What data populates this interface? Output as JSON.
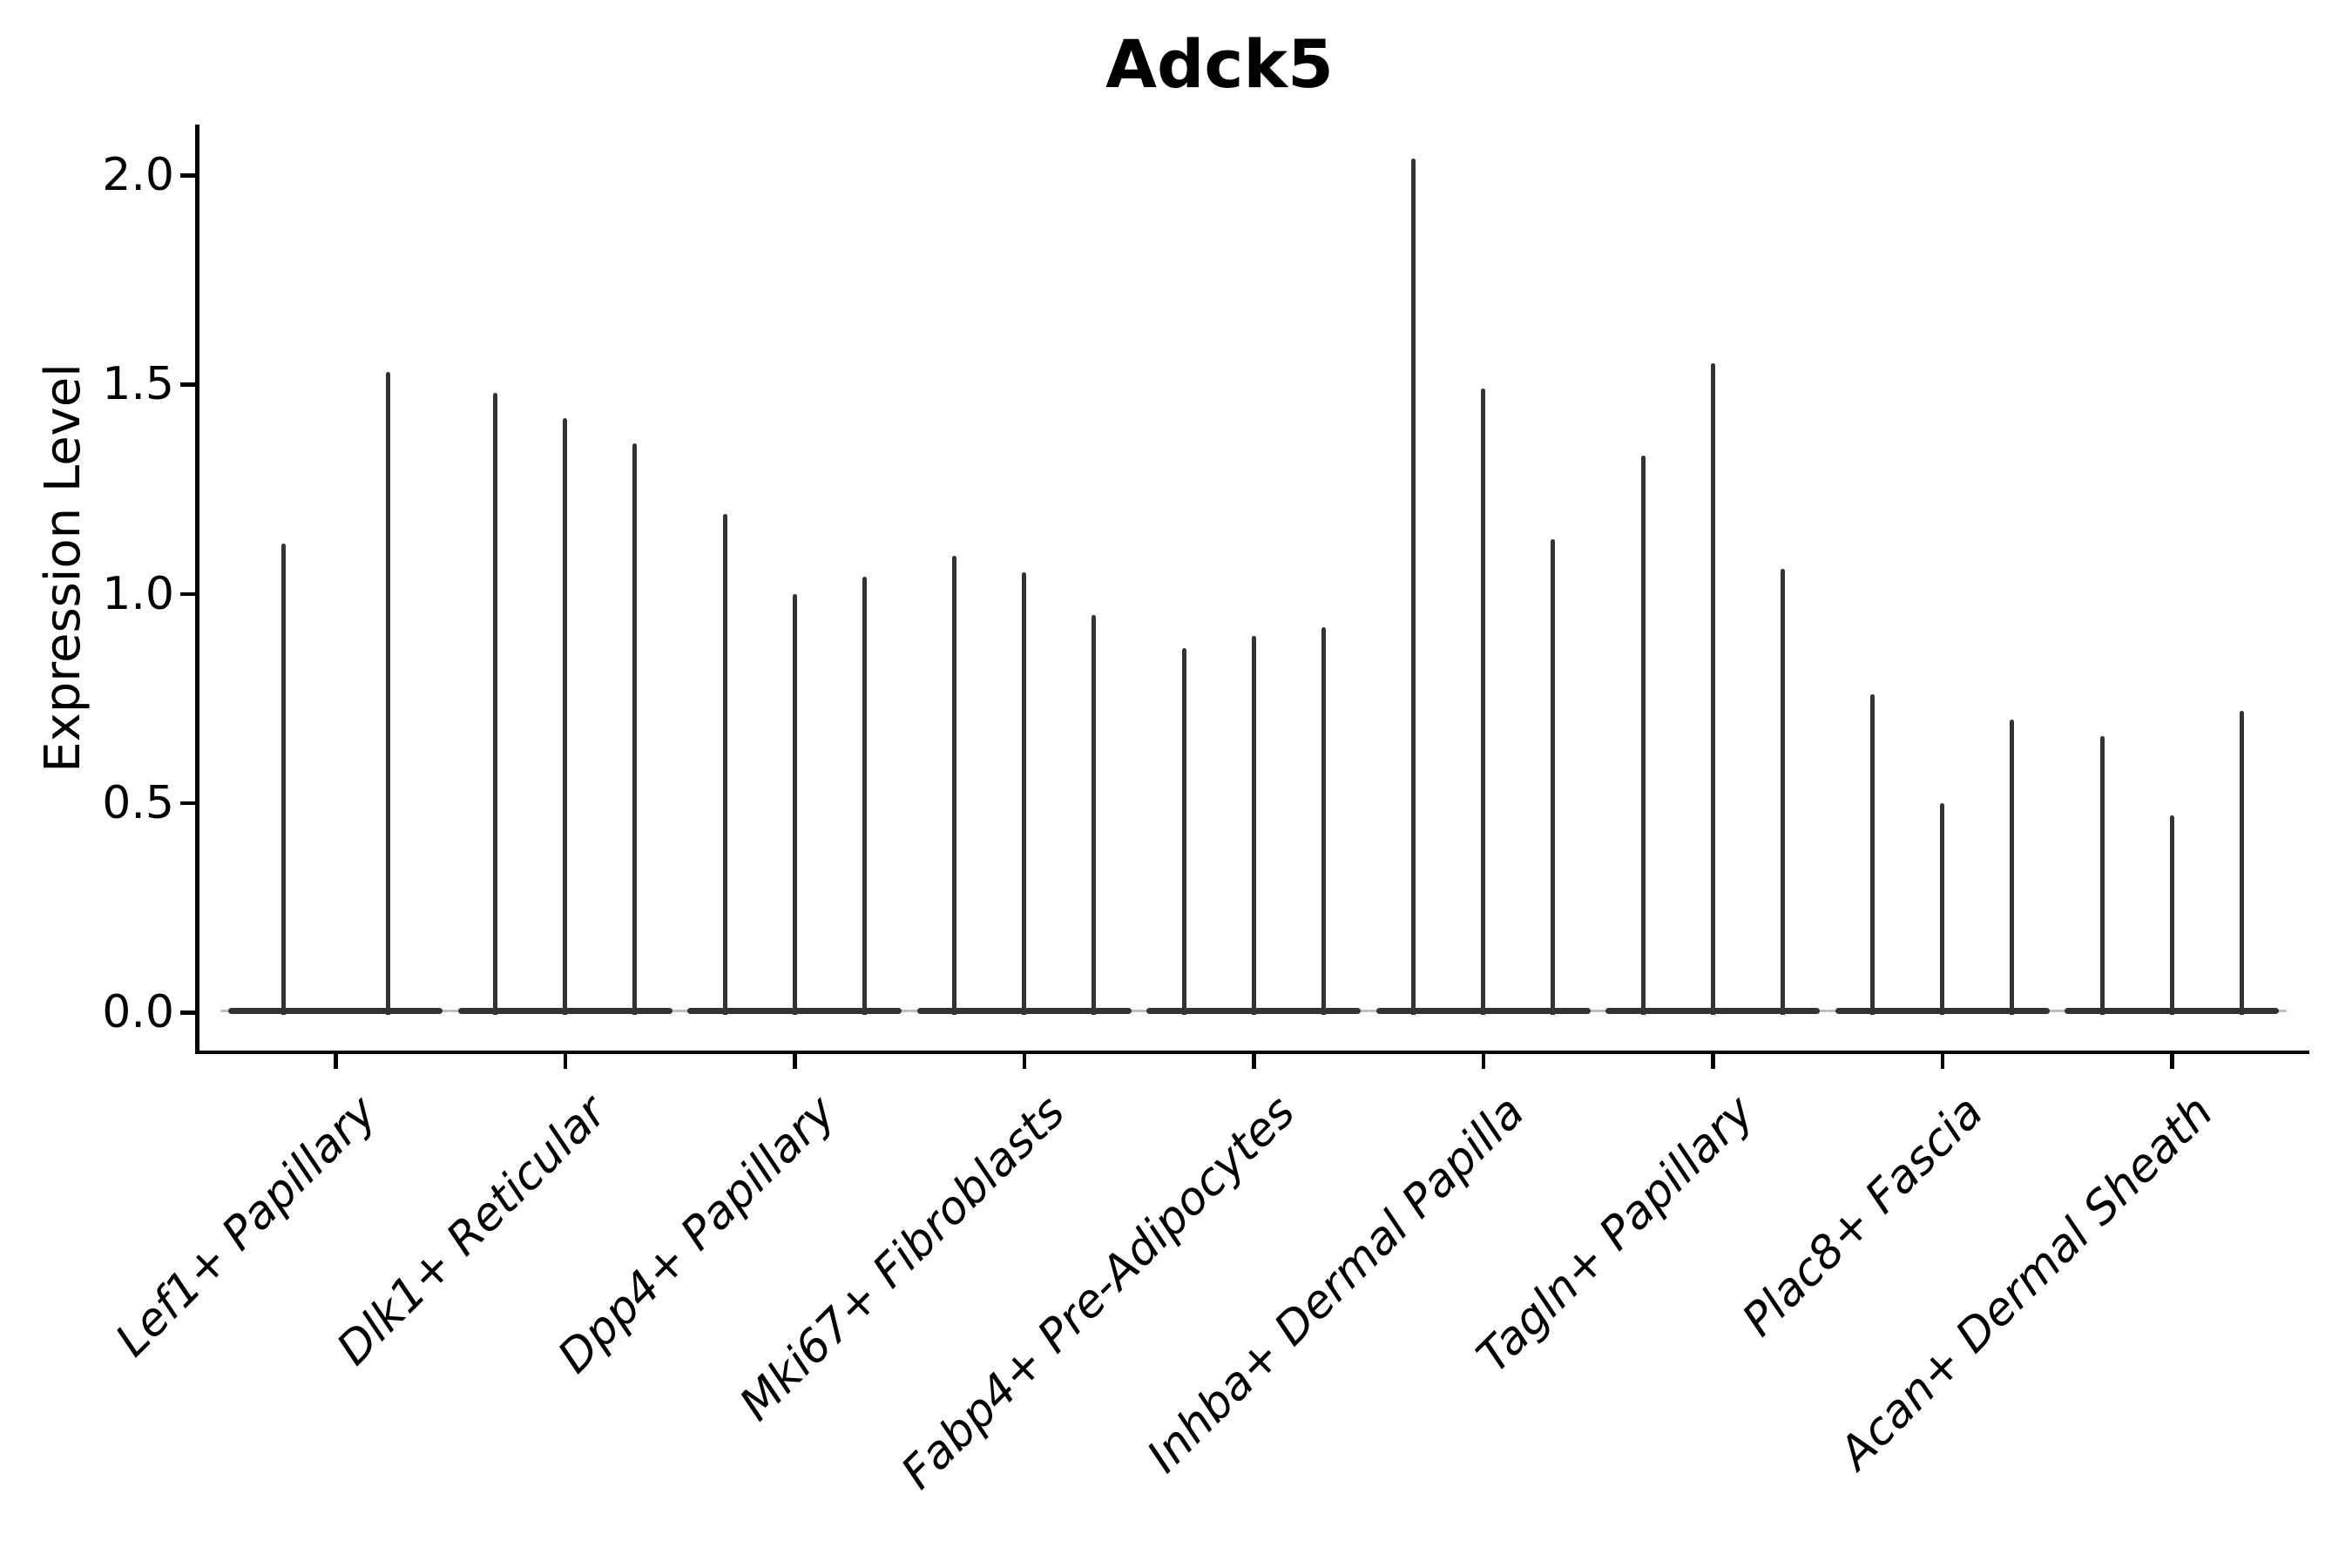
{
  "figure": {
    "title": "Adck5",
    "ylabel": "Expression Level",
    "background_color": "#ffffff",
    "axis_color": "#000000",
    "violin_color": "#333333",
    "violin_edge_color": "#888888"
  },
  "chart_data": {
    "type": "violin",
    "title": "Adck5",
    "xlabel": "",
    "ylabel": "Expression Level",
    "ylim": [
      -0.1,
      2.12
    ],
    "yticks": [
      0.0,
      0.5,
      1.0,
      1.5,
      2.0
    ],
    "ytick_labels": [
      "0.0",
      "0.5",
      "1.0",
      "1.5",
      "2.0"
    ],
    "grid": false,
    "legend": "none",
    "orientation": "vertical",
    "violin_shape_note": "each violin has nearly all density at 0 (wide flat base at y=0) with a thin vertical tail reaching its max expression value",
    "categories": [
      "Lef1+ Papillary",
      "Dlk1+ Reticular",
      "Dpp4+ Papillary",
      "Mki67+ Fibroblasts",
      "Fabp4+ Pre-Adipocytes",
      "Inhba+ Dermal Papilla",
      "Tagln+ Papillary",
      "Plac8+ Fascia",
      "Acan+ Dermal Sheath"
    ],
    "series": [
      {
        "category": "Lef1+ Papillary",
        "violin_max_values": [
          1.12,
          1.53
        ]
      },
      {
        "category": "Dlk1+ Reticular",
        "violin_max_values": [
          1.48,
          1.42,
          1.36
        ]
      },
      {
        "category": "Dpp4+ Papillary",
        "violin_max_values": [
          1.19,
          1.0,
          1.04
        ]
      },
      {
        "category": "Mki67+ Fibroblasts",
        "violin_max_values": [
          1.09,
          1.05,
          0.95
        ]
      },
      {
        "category": "Fabp4+ Pre-Adipocytes",
        "violin_max_values": [
          0.87,
          0.9,
          0.92
        ]
      },
      {
        "category": "Inhba+ Dermal Papilla",
        "violin_max_values": [
          2.04,
          1.49,
          1.13
        ]
      },
      {
        "category": "Tagln+ Papillary",
        "violin_max_values": [
          1.33,
          1.55,
          1.06
        ]
      },
      {
        "category": "Plac8+ Fascia",
        "violin_max_values": [
          0.76,
          0.5,
          0.7
        ]
      },
      {
        "category": "Acan+ Dermal Sheath",
        "violin_max_values": [
          0.66,
          0.47,
          0.72
        ]
      }
    ]
  }
}
